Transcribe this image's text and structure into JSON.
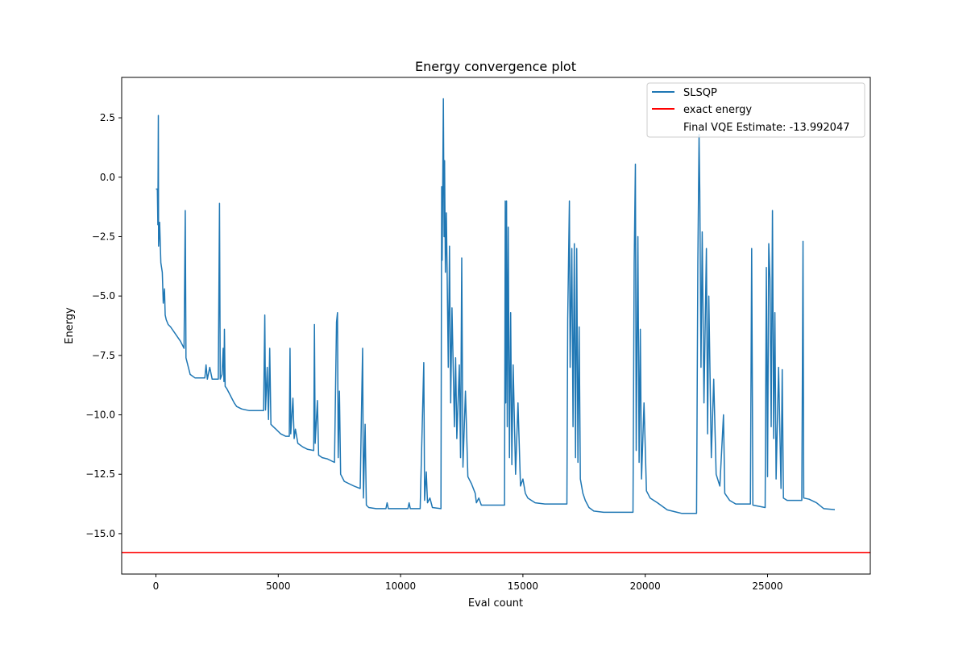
{
  "chart_data": {
    "type": "line",
    "title": "Energy convergence plot",
    "xlabel": "Eval count",
    "ylabel": "Energy",
    "xlim": [
      -1400,
      29200
    ],
    "ylim": [
      -16.7,
      4.2
    ],
    "xticks": [
      0,
      5000,
      10000,
      15000,
      20000,
      25000
    ],
    "xtick_labels": [
      "0",
      "5000",
      "10000",
      "15000",
      "20000",
      "25000"
    ],
    "yticks": [
      2.5,
      0.0,
      -2.5,
      -5.0,
      -7.5,
      -10.0,
      -12.5,
      -15.0
    ],
    "ytick_labels": [
      "2.5",
      "0.0",
      "−2.5",
      "−5.0",
      "−7.5",
      "−10.0",
      "−12.5",
      "−15.0"
    ],
    "grid": false,
    "legend_position": "top-right",
    "legend": [
      {
        "label": "SLSQP",
        "color": "#1f77b4"
      },
      {
        "label": "exact energy",
        "color": "#ff0000"
      },
      {
        "label": "Final VQE Estimate: -13.992047",
        "color": null
      }
    ],
    "series": [
      {
        "name": "SLSQP",
        "color": "#1f77b4",
        "points": [
          [
            0,
            -0.5
          ],
          [
            60,
            -0.5
          ],
          [
            80,
            -2.0
          ],
          [
            100,
            2.6
          ],
          [
            110,
            -2.9
          ],
          [
            150,
            -1.9
          ],
          [
            200,
            -3.6
          ],
          [
            260,
            -4.0
          ],
          [
            300,
            -5.3
          ],
          [
            350,
            -4.7
          ],
          [
            380,
            -5.8
          ],
          [
            420,
            -6.0
          ],
          [
            500,
            -6.2
          ],
          [
            600,
            -6.3
          ],
          [
            800,
            -6.6
          ],
          [
            1000,
            -6.9
          ],
          [
            1150,
            -7.2
          ],
          [
            1200,
            -1.4
          ],
          [
            1230,
            -7.6
          ],
          [
            1300,
            -7.9
          ],
          [
            1400,
            -8.3
          ],
          [
            1600,
            -8.45
          ],
          [
            2000,
            -8.45
          ],
          [
            2050,
            -7.9
          ],
          [
            2100,
            -8.5
          ],
          [
            2200,
            -8.0
          ],
          [
            2300,
            -8.5
          ],
          [
            2550,
            -8.5
          ],
          [
            2600,
            -1.1
          ],
          [
            2630,
            -8.5
          ],
          [
            2700,
            -8.3
          ],
          [
            2750,
            -7.2
          ],
          [
            2780,
            -8.6
          ],
          [
            2800,
            -6.4
          ],
          [
            2830,
            -8.8
          ],
          [
            2900,
            -8.9
          ],
          [
            3000,
            -9.1
          ],
          [
            3100,
            -9.3
          ],
          [
            3200,
            -9.5
          ],
          [
            3300,
            -9.65
          ],
          [
            3500,
            -9.75
          ],
          [
            3800,
            -9.82
          ],
          [
            4400,
            -9.82
          ],
          [
            4450,
            -5.8
          ],
          [
            4480,
            -9.8
          ],
          [
            4550,
            -8.0
          ],
          [
            4600,
            -10.2
          ],
          [
            4650,
            -7.2
          ],
          [
            4700,
            -10.4
          ],
          [
            4800,
            -10.5
          ],
          [
            4900,
            -10.6
          ],
          [
            5100,
            -10.8
          ],
          [
            5300,
            -10.9
          ],
          [
            5450,
            -10.9
          ],
          [
            5480,
            -7.2
          ],
          [
            5510,
            -10.8
          ],
          [
            5600,
            -9.3
          ],
          [
            5650,
            -11.0
          ],
          [
            5700,
            -10.6
          ],
          [
            5800,
            -11.2
          ],
          [
            6000,
            -11.35
          ],
          [
            6200,
            -11.45
          ],
          [
            6450,
            -11.5
          ],
          [
            6480,
            -6.2
          ],
          [
            6510,
            -11.2
          ],
          [
            6600,
            -9.4
          ],
          [
            6650,
            -11.7
          ],
          [
            6800,
            -11.8
          ],
          [
            7000,
            -11.85
          ],
          [
            7300,
            -12.0
          ],
          [
            7380,
            -6.1
          ],
          [
            7420,
            -5.7
          ],
          [
            7450,
            -11.8
          ],
          [
            7500,
            -9.0
          ],
          [
            7550,
            -12.5
          ],
          [
            7700,
            -12.8
          ],
          [
            7900,
            -12.9
          ],
          [
            8100,
            -13.0
          ],
          [
            8350,
            -13.1
          ],
          [
            8400,
            -10.0
          ],
          [
            8450,
            -7.2
          ],
          [
            8480,
            -13.5
          ],
          [
            8550,
            -10.4
          ],
          [
            8600,
            -13.8
          ],
          [
            8700,
            -13.9
          ],
          [
            9000,
            -13.95
          ],
          [
            9400,
            -13.95
          ],
          [
            9450,
            -13.7
          ],
          [
            9500,
            -13.95
          ],
          [
            10300,
            -13.95
          ],
          [
            10350,
            -13.7
          ],
          [
            10400,
            -13.95
          ],
          [
            10800,
            -13.95
          ],
          [
            10950,
            -7.8
          ],
          [
            10980,
            -13.6
          ],
          [
            11050,
            -12.4
          ],
          [
            11100,
            -13.7
          ],
          [
            11200,
            -13.5
          ],
          [
            11300,
            -13.9
          ],
          [
            11650,
            -13.95
          ],
          [
            11680,
            -0.4
          ],
          [
            11700,
            -3.5
          ],
          [
            11750,
            3.3
          ],
          [
            11780,
            -2.5
          ],
          [
            11800,
            0.7
          ],
          [
            11830,
            -4.0
          ],
          [
            11870,
            -1.5
          ],
          [
            11900,
            -3.8
          ],
          [
            11950,
            -8.0
          ],
          [
            12000,
            -2.9
          ],
          [
            12050,
            -9.5
          ],
          [
            12100,
            -5.5
          ],
          [
            12200,
            -10.5
          ],
          [
            12250,
            -7.6
          ],
          [
            12300,
            -11.0
          ],
          [
            12400,
            -7.9
          ],
          [
            12450,
            -11.8
          ],
          [
            12500,
            -3.4
          ],
          [
            12550,
            -12.2
          ],
          [
            12650,
            -9.0
          ],
          [
            12750,
            -12.6
          ],
          [
            12900,
            -12.9
          ],
          [
            13050,
            -13.3
          ],
          [
            13100,
            -13.7
          ],
          [
            13200,
            -13.5
          ],
          [
            13300,
            -13.8
          ],
          [
            14250,
            -13.8
          ],
          [
            14280,
            -1.0
          ],
          [
            14300,
            -9.5
          ],
          [
            14330,
            -1.0
          ],
          [
            14360,
            -10.5
          ],
          [
            14400,
            -2.1
          ],
          [
            14450,
            -11.8
          ],
          [
            14500,
            -5.7
          ],
          [
            14550,
            -12.1
          ],
          [
            14600,
            -7.9
          ],
          [
            14700,
            -12.5
          ],
          [
            14800,
            -9.5
          ],
          [
            14900,
            -13.0
          ],
          [
            15000,
            -12.7
          ],
          [
            15100,
            -13.3
          ],
          [
            15200,
            -13.5
          ],
          [
            15500,
            -13.7
          ],
          [
            15900,
            -13.75
          ],
          [
            16800,
            -13.75
          ],
          [
            16830,
            -6.0
          ],
          [
            16900,
            -1.0
          ],
          [
            16930,
            -8.0
          ],
          [
            17000,
            -3.0
          ],
          [
            17050,
            -10.5
          ],
          [
            17100,
            -2.8
          ],
          [
            17150,
            -11.8
          ],
          [
            17200,
            -3.0
          ],
          [
            17250,
            -12.0
          ],
          [
            17300,
            -6.3
          ],
          [
            17350,
            -12.7
          ],
          [
            17450,
            -13.3
          ],
          [
            17550,
            -13.6
          ],
          [
            17700,
            -13.9
          ],
          [
            17900,
            -14.05
          ],
          [
            18300,
            -14.1
          ],
          [
            19500,
            -14.1
          ],
          [
            19550,
            -3.6
          ],
          [
            19600,
            0.55
          ],
          [
            19630,
            -11.5
          ],
          [
            19700,
            -2.5
          ],
          [
            19750,
            -12.0
          ],
          [
            19800,
            -6.4
          ],
          [
            19850,
            -12.7
          ],
          [
            19950,
            -9.5
          ],
          [
            20050,
            -13.2
          ],
          [
            20200,
            -13.5
          ],
          [
            20500,
            -13.7
          ],
          [
            20900,
            -14.0
          ],
          [
            21300,
            -14.1
          ],
          [
            21500,
            -14.15
          ],
          [
            22100,
            -14.15
          ],
          [
            22150,
            -3.6
          ],
          [
            22200,
            1.8
          ],
          [
            22230,
            -0.6
          ],
          [
            22280,
            -8.0
          ],
          [
            22330,
            -2.3
          ],
          [
            22400,
            -9.5
          ],
          [
            22500,
            -3.0
          ],
          [
            22550,
            -10.8
          ],
          [
            22600,
            -5.0
          ],
          [
            22700,
            -11.8
          ],
          [
            22800,
            -8.5
          ],
          [
            22900,
            -12.5
          ],
          [
            23050,
            -13.0
          ],
          [
            23200,
            -10.0
          ],
          [
            23250,
            -13.3
          ],
          [
            23450,
            -13.6
          ],
          [
            23700,
            -13.75
          ],
          [
            24300,
            -13.75
          ],
          [
            24350,
            -3.0
          ],
          [
            24400,
            -13.8
          ],
          [
            24900,
            -13.9
          ],
          [
            24950,
            -3.8
          ],
          [
            25000,
            -12.6
          ],
          [
            25050,
            -2.8
          ],
          [
            25100,
            -4.3
          ],
          [
            25150,
            -10.5
          ],
          [
            25200,
            -1.4
          ],
          [
            25250,
            -11.0
          ],
          [
            25300,
            -5.7
          ],
          [
            25350,
            -12.7
          ],
          [
            25450,
            -8.0
          ],
          [
            25550,
            -13.1
          ],
          [
            25600,
            -8.1
          ],
          [
            25650,
            -13.5
          ],
          [
            25800,
            -13.6
          ],
          [
            26400,
            -13.6
          ],
          [
            26450,
            -2.7
          ],
          [
            26480,
            -13.5
          ],
          [
            26700,
            -13.55
          ],
          [
            27000,
            -13.7
          ],
          [
            27300,
            -13.95
          ],
          [
            27750,
            -13.99
          ]
        ]
      },
      {
        "name": "exact energy",
        "color": "#ff0000",
        "y": -15.8
      }
    ]
  }
}
